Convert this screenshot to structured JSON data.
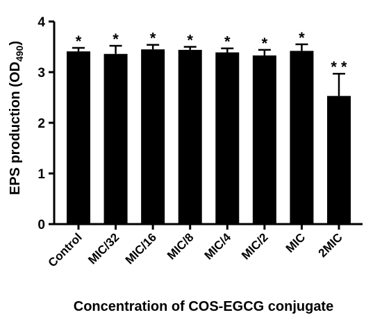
{
  "chart_data": {
    "type": "bar",
    "title": "",
    "xlabel": "Concentration of COS-EGCG conjugate",
    "ylabel": {
      "main": "EPS production (OD",
      "sub": "490",
      "close": ")"
    },
    "ylim": [
      0,
      4
    ],
    "yticks": [
      "0",
      "1",
      "2",
      "3",
      "4"
    ],
    "categories": [
      "Control",
      "MIC/32",
      "MIC/16",
      "MIC/8",
      "MIC/4",
      "MIC/2",
      "MIC",
      "2MIC"
    ],
    "values": [
      3.41,
      3.36,
      3.45,
      3.44,
      3.39,
      3.33,
      3.42,
      2.53
    ],
    "errors": [
      0.07,
      0.16,
      0.09,
      0.06,
      0.08,
      0.11,
      0.13,
      0.44
    ],
    "significance": [
      "*",
      "*",
      "*",
      "*",
      "*",
      "*",
      "*",
      "**"
    ],
    "bar_color": "#000000",
    "grid": false,
    "legend": "none"
  }
}
